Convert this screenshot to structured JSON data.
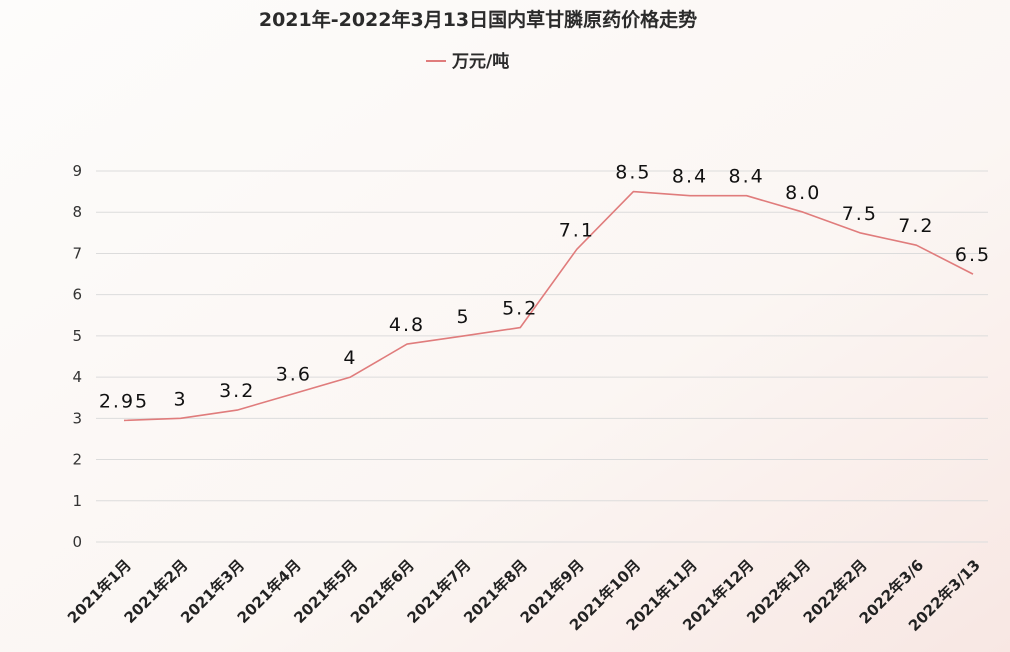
{
  "chart_data": {
    "type": "line",
    "title": "2021年-2022年3月13日国内草甘膦原药价格走势",
    "categories": [
      "2021年1月",
      "2021年2月",
      "2021年3月",
      "2021年4月",
      "2021年5月",
      "2021年6月",
      "2021年7月",
      "2021年8月",
      "2021年9月",
      "2021年10月",
      "2021年11月",
      "2021年12月",
      "2022年1月",
      "2022年2月",
      "2022年3/6",
      "2022年3/13"
    ],
    "series": [
      {
        "name": "万元/吨",
        "values": [
          2.95,
          3,
          3.2,
          3.6,
          4,
          4.8,
          5,
          5.2,
          7.1,
          8.5,
          8.4,
          8.4,
          8.0,
          7.5,
          7.2,
          6.5
        ],
        "labels": [
          "2.95",
          "3",
          "3.2",
          "3.6",
          "4",
          "4.8",
          "5",
          "5.2",
          "7.1",
          "8.5",
          "8.4",
          "8.4",
          "8.0",
          "7.5",
          "7.2",
          "6.5"
        ],
        "color": "#e07c7c"
      }
    ],
    "yticks": [
      0,
      1,
      2,
      3,
      4,
      5,
      6,
      7,
      8,
      9
    ],
    "ylim": [
      0,
      9
    ],
    "xlabel": "",
    "ylabel": "",
    "grid": true,
    "legend_position": "top-center"
  }
}
